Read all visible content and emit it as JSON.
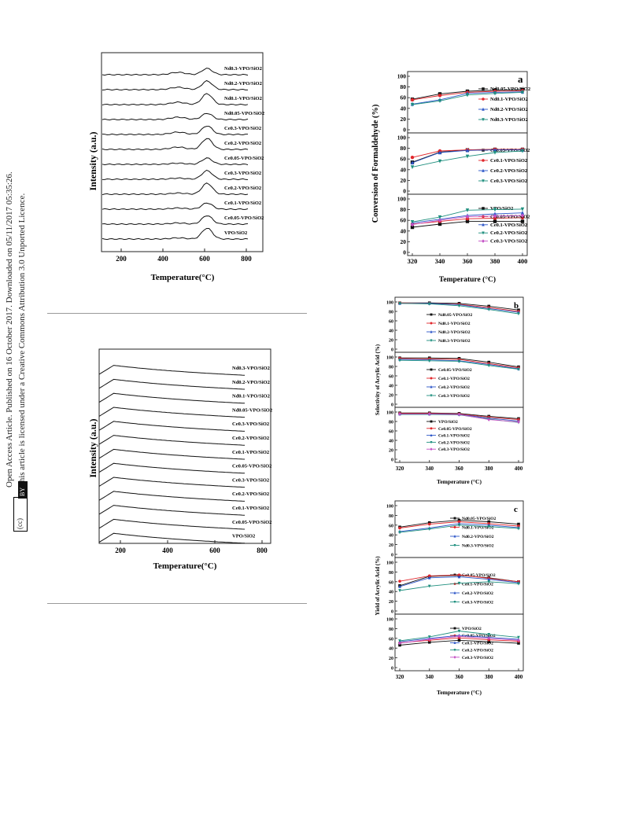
{
  "sidebar": {
    "line1": "Open Access Article. Published on 16 October 2017. Downloaded on 05/11/2017 05:35:26.",
    "line2": "This article is licensed under a Creative Commons Attribution 3.0 Unported Licence.",
    "cc_label": "(cc)",
    "by_label": "BY"
  },
  "xrd1": {
    "ylabel": "Intensity (a.u.)",
    "xlabel": "Temperature(°C)",
    "xticks": [
      "200",
      "400",
      "600",
      "800"
    ],
    "labels": [
      "Nd0.3-VPO/SiO2",
      "Nd0.2-VPO/SiO2",
      "Nd0.1-VPO/SiO2",
      "Nd0.05-VPO/SiO2",
      "Ce0.3-VPO/SiO2",
      "Ce0.2-VPO/SiO2",
      "Ce0.05-VPO/SiO2",
      "Ce0.3-VPO/SiO2",
      "Ce0.2-VPO/SiO2",
      "Ce0.1-VPO/SiO2",
      "Ce0.05-VPO/SiO2",
      "VPO/SiO2"
    ]
  },
  "xrd2": {
    "ylabel": "Intensity (a.u.)",
    "xlabel": "Temperature(°C)",
    "xticks": [
      "200",
      "400",
      "600",
      "800"
    ],
    "labels": [
      "Nd0.3-VPO/SiO2",
      "Nd0.2-VPO/SiO2",
      "Nd0.1-VPO/SiO2",
      "Nd0.05-VPO/SiO2",
      "Ce0.3-VPO/SiO2",
      "Ce0.2-VPO/SiO2",
      "Ce0.1-VPO/SiO2",
      "Ce0.05-VPO/SiO2",
      "Ce0.3-VPO/SiO2",
      "Ce0.2-VPO/SiO2",
      "Ce0.1-VPO/SiO2",
      "Ce0.05-VPO/SiO2",
      "VPO/SiO2"
    ]
  },
  "series_colors": [
    "#111111",
    "#e0262b",
    "#2c56c8",
    "#1e8f7e",
    "#c34fc4"
  ],
  "chart_data": [
    {
      "type": "line",
      "panel_letter": "a",
      "ylabel": "Conversion of  Formaldehyde (%)",
      "xlabel": "Temperature (°C)",
      "x": [
        320,
        340,
        360,
        380,
        400
      ],
      "yticks": [
        "100",
        "80",
        "60",
        "40",
        "20",
        "0"
      ],
      "ylim": [
        0,
        100
      ],
      "subplots": [
        {
          "series": [
            {
              "name": "Nd0.05-VPO/SiO2",
              "values": [
                57,
                67,
                72,
                74,
                75
              ]
            },
            {
              "name": "Nd0.1-VPO/SiO2",
              "values": [
                56,
                64,
                70,
                72,
                73
              ]
            },
            {
              "name": "Nd0.2-VPO/SiO2",
              "values": [
                48,
                56,
                68,
                70,
                71
              ]
            },
            {
              "name": "Nd0.3-VPO/SiO2",
              "values": [
                47,
                54,
                65,
                68,
                70
              ]
            }
          ]
        },
        {
          "series": [
            {
              "name": "Ce0.05-VPO/SiO2",
              "values": [
                54,
                73,
                77,
                78,
                78
              ]
            },
            {
              "name": "Ce0.1-VPO/SiO2",
              "values": [
                63,
                75,
                77,
                78,
                78
              ]
            },
            {
              "name": "Ce0.2-VPO/SiO2",
              "values": [
                53,
                72,
                76,
                77,
                77
              ]
            },
            {
              "name": "Ce0.3-VPO/SiO2",
              "values": [
                45,
                56,
                65,
                72,
                75
              ]
            }
          ]
        },
        {
          "series": [
            {
              "name": "VPO/SiO2",
              "values": [
                47,
                53,
                58,
                58,
                58
              ]
            },
            {
              "name": "Ce0.05-VPO/SiO2",
              "values": [
                53,
                58,
                63,
                64,
                65
              ]
            },
            {
              "name": "Ce0.1-VPO/SiO2",
              "values": [
                55,
                62,
                69,
                72,
                74
              ]
            },
            {
              "name": "Ce0.2-VPO/SiO2",
              "values": [
                57,
                66,
                79,
                80,
                81
              ]
            },
            {
              "name": "Ce0.3-VPO/SiO2",
              "values": [
                52,
                60,
                67,
                68,
                69
              ]
            }
          ]
        }
      ]
    },
    {
      "type": "line",
      "panel_letter": "b",
      "ylabel": "Selectivity of Acrylic Acid (%)",
      "xlabel": "Temperature (°C)",
      "x": [
        320,
        340,
        360,
        380,
        400
      ],
      "yticks": [
        "100",
        "80",
        "60",
        "40",
        "20",
        "0"
      ],
      "ylim": [
        0,
        100
      ],
      "subplots": [
        {
          "series": [
            {
              "name": "Nd0.05-VPO/SiO2",
              "values": [
                98,
                98,
                97,
                91,
                83
              ]
            },
            {
              "name": "Nd0.1-VPO/SiO2",
              "values": [
                98,
                97,
                95,
                88,
                80
              ]
            },
            {
              "name": "Nd0.2-VPO/SiO2",
              "values": [
                97,
                97,
                94,
                86,
                78
              ]
            },
            {
              "name": "Nd0.3-VPO/SiO2",
              "values": [
                97,
                96,
                92,
                84,
                75
              ]
            }
          ]
        },
        {
          "series": [
            {
              "name": "Ce0.05-VPO/SiO2",
              "values": [
                98,
                98,
                97,
                89,
                79
              ]
            },
            {
              "name": "Ce0.1-VPO/SiO2",
              "values": [
                97,
                96,
                95,
                86,
                77
              ]
            },
            {
              "name": "Ce0.2-VPO/SiO2",
              "values": [
                95,
                94,
                92,
                84,
                75
              ]
            },
            {
              "name": "Ce0.3-VPO/SiO2",
              "values": [
                93,
                92,
                91,
                82,
                74
              ]
            }
          ]
        },
        {
          "series": [
            {
              "name": "VPO/SiO2",
              "values": [
                98,
                98,
                97,
                91,
                86
              ]
            },
            {
              "name": "Ce0.05-VPO/SiO2",
              "values": [
                97,
                97,
                96,
                89,
                84
              ]
            },
            {
              "name": "Ce0.1-VPO/SiO2",
              "values": [
                96,
                96,
                95,
                87,
                81
              ]
            },
            {
              "name": "Ce0.2-VPO/SiO2",
              "values": [
                95,
                95,
                94,
                85,
                78
              ]
            },
            {
              "name": "Ce0.3-VPO/SiO2",
              "values": [
                96,
                96,
                95,
                84,
                79
              ]
            }
          ]
        }
      ]
    },
    {
      "type": "line",
      "panel_letter": "c",
      "ylabel": "Yield of Acrylic Acid (%)",
      "xlabel": "Temperature (°C)",
      "x": [
        320,
        340,
        360,
        380,
        400
      ],
      "yticks": [
        "100",
        "80",
        "60",
        "40",
        "20",
        "0"
      ],
      "ylim": [
        0,
        100
      ],
      "subplots": [
        {
          "series": [
            {
              "name": "Nd0.05-VPO/SiO2",
              "values": [
                56,
                65,
                70,
                67,
                62
              ]
            },
            {
              "name": "Nd0.1-VPO/SiO2",
              "values": [
                54,
                62,
                67,
                63,
                58
              ]
            },
            {
              "name": "Nd0.2-VPO/SiO2",
              "values": [
                47,
                54,
                63,
                60,
                55
              ]
            },
            {
              "name": "Nd0.3-VPO/SiO2",
              "values": [
                45,
                52,
                60,
                57,
                53
              ]
            }
          ]
        },
        {
          "series": [
            {
              "name": "Ce0.05-VPO/SiO2",
              "values": [
                52,
                71,
                73,
                68,
                60
              ]
            },
            {
              "name": "Ce0.1-VPO/SiO2",
              "values": [
                61,
                72,
                74,
                67,
                60
              ]
            },
            {
              "name": "Ce0.2-VPO/SiO2",
              "values": [
                50,
                68,
                70,
                65,
                58
              ]
            },
            {
              "name": "Ce0.3-VPO/SiO2",
              "values": [
                42,
                51,
                57,
                60,
                56
              ]
            }
          ]
        },
        {
          "series": [
            {
              "name": "VPO/SiO2",
              "values": [
                46,
                52,
                56,
                53,
                50
              ]
            },
            {
              "name": "Ce0.05-VPO/SiO2",
              "values": [
                51,
                56,
                61,
                57,
                54
              ]
            },
            {
              "name": "Ce0.1-VPO/SiO2",
              "values": [
                53,
                60,
                66,
                62,
                58
              ]
            },
            {
              "name": "Ce0.2-VPO/SiO2",
              "values": [
                55,
                63,
                75,
                68,
                62
              ]
            },
            {
              "name": "Ce0.3-VPO/SiO2",
              "values": [
                50,
                58,
                64,
                60,
                56
              ]
            }
          ]
        }
      ]
    }
  ]
}
